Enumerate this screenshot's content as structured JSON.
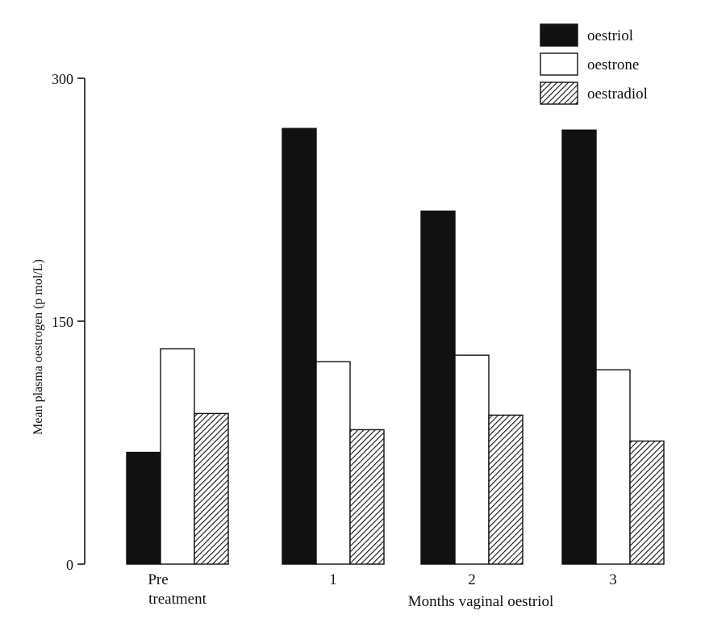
{
  "chart_data": {
    "type": "bar",
    "title": "",
    "xlabel": "Months vaginal oestriol",
    "ylabel": "Mean plasma oestrogen  (p mol/L)",
    "ylim": [
      0,
      300
    ],
    "yticks": [
      0,
      150,
      300
    ],
    "categories": [
      "Pre treatment",
      "1",
      "2",
      "3"
    ],
    "category_label_lines": [
      [
        "Pre",
        "treatment"
      ],
      [
        "1"
      ],
      [
        "2"
      ],
      [
        "3"
      ]
    ],
    "series": [
      {
        "name": "oestriol",
        "style": "solid",
        "values": [
          69,
          269,
          218,
          268
        ]
      },
      {
        "name": "oestrone",
        "style": "open",
        "values": [
          133,
          125,
          129,
          120
        ]
      },
      {
        "name": "oestradiol",
        "style": "hatched",
        "values": [
          93,
          83,
          92,
          76
        ]
      }
    ],
    "legend_position": "top-right",
    "grid": false
  }
}
